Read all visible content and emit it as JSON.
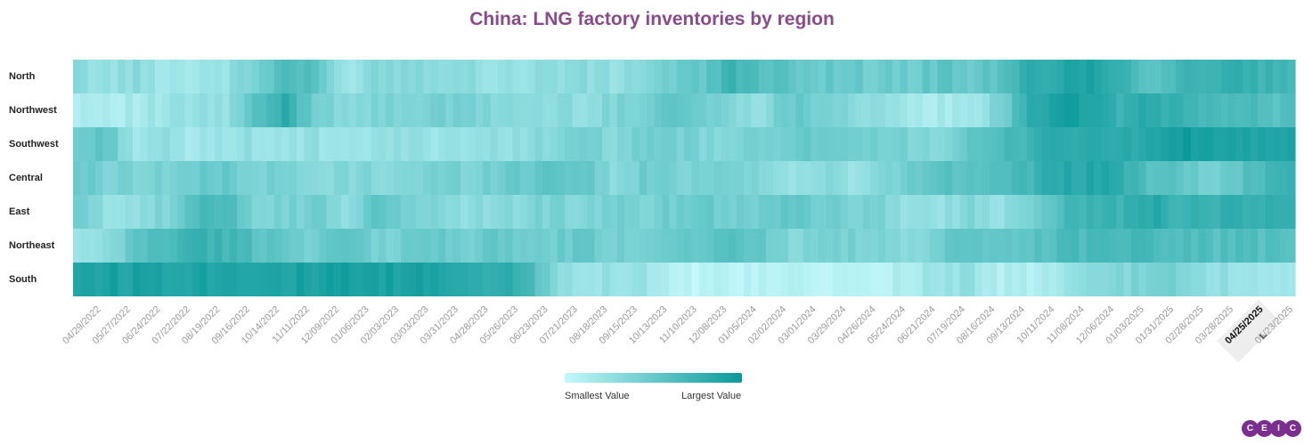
{
  "page_title": "China: LNG factory inventories by region",
  "colors": {
    "title": "#8b4a8c",
    "min": "#c4f8fb",
    "max": "#0a9999",
    "logo": "#7a2e8e"
  },
  "legend": {
    "min_label": "Smallest Value",
    "max_label": "Largest Value"
  },
  "logo_text": [
    "C",
    "E",
    "I",
    "C"
  ],
  "chart_data": {
    "type": "heatmap",
    "title": "China: LNG factory inventories by region",
    "rows": [
      "North",
      "Northwest",
      "Southwest",
      "Central",
      "East",
      "Northeast",
      "South"
    ],
    "x_tick_labels": [
      "04/29/2022",
      "05/27/2022",
      "06/24/2022",
      "07/22/2022",
      "08/19/2022",
      "09/16/2022",
      "10/14/2022",
      "11/11/2022",
      "12/09/2022",
      "01/06/2023",
      "02/03/2023",
      "03/03/2023",
      "03/31/2023",
      "04/28/2023",
      "05/26/2023",
      "06/23/2023",
      "07/21/2023",
      "08/18/2023",
      "09/15/2023",
      "10/13/2023",
      "11/10/2023",
      "12/08/2023",
      "01/05/2024",
      "02/02/2024",
      "03/01/2024",
      "03/29/2024",
      "04/26/2024",
      "05/24/2024",
      "06/21/2024",
      "07/19/2024",
      "08/16/2024",
      "09/13/2024",
      "10/11/2024",
      "11/08/2024",
      "12/06/2024",
      "01/03/2025",
      "01/31/2025",
      "02/28/2025",
      "03/28/2025",
      "04/25/2025",
      "05/23/2025"
    ],
    "highlighted_tick": "04/25/2025",
    "scale": "relative (smallest to largest value)",
    "values_by_row_per_tick": {
      "North": [
        0.3,
        0.25,
        0.3,
        0.2,
        0.2,
        0.25,
        0.4,
        0.65,
        0.55,
        0.2,
        0.35,
        0.35,
        0.35,
        0.3,
        0.25,
        0.25,
        0.3,
        0.3,
        0.25,
        0.35,
        0.45,
        0.5,
        0.75,
        0.55,
        0.55,
        0.5,
        0.5,
        0.45,
        0.45,
        0.55,
        0.5,
        0.55,
        0.8,
        0.85,
        0.9,
        0.8,
        0.55,
        0.7,
        0.75,
        0.75,
        0.7
      ],
      "Northwest": [
        0.15,
        0.15,
        0.15,
        0.2,
        0.25,
        0.25,
        0.55,
        0.8,
        0.45,
        0.35,
        0.35,
        0.4,
        0.4,
        0.4,
        0.35,
        0.3,
        0.3,
        0.3,
        0.35,
        0.45,
        0.55,
        0.45,
        0.35,
        0.3,
        0.5,
        0.45,
        0.35,
        0.25,
        0.15,
        0.15,
        0.15,
        0.4,
        0.85,
        0.9,
        0.9,
        0.75,
        0.8,
        0.75,
        0.65,
        0.65,
        0.6
      ],
      "Southwest": [
        0.45,
        0.55,
        0.2,
        0.25,
        0.15,
        0.25,
        0.25,
        0.2,
        0.25,
        0.15,
        0.25,
        0.25,
        0.25,
        0.25,
        0.25,
        0.3,
        0.35,
        0.4,
        0.35,
        0.4,
        0.45,
        0.35,
        0.35,
        0.4,
        0.5,
        0.45,
        0.4,
        0.4,
        0.4,
        0.35,
        0.5,
        0.6,
        0.75,
        0.85,
        0.8,
        0.8,
        0.85,
        0.95,
        0.9,
        0.9,
        0.85
      ],
      "Central": [
        0.5,
        0.4,
        0.4,
        0.4,
        0.45,
        0.5,
        0.4,
        0.4,
        0.3,
        0.35,
        0.35,
        0.35,
        0.4,
        0.4,
        0.45,
        0.5,
        0.55,
        0.55,
        0.3,
        0.45,
        0.4,
        0.4,
        0.45,
        0.35,
        0.2,
        0.35,
        0.2,
        0.35,
        0.45,
        0.6,
        0.55,
        0.65,
        0.7,
        0.8,
        0.85,
        0.8,
        0.6,
        0.55,
        0.4,
        0.55,
        0.7
      ],
      "East": [
        0.45,
        0.25,
        0.3,
        0.35,
        0.6,
        0.7,
        0.4,
        0.4,
        0.45,
        0.3,
        0.5,
        0.45,
        0.35,
        0.3,
        0.3,
        0.35,
        0.4,
        0.35,
        0.4,
        0.4,
        0.45,
        0.5,
        0.45,
        0.45,
        0.55,
        0.45,
        0.4,
        0.4,
        0.25,
        0.25,
        0.35,
        0.25,
        0.45,
        0.65,
        0.7,
        0.75,
        0.85,
        0.75,
        0.75,
        0.75,
        0.8
      ],
      "Northeast": [
        0.2,
        0.25,
        0.55,
        0.65,
        0.75,
        0.7,
        0.6,
        0.5,
        0.45,
        0.55,
        0.4,
        0.45,
        0.5,
        0.45,
        0.5,
        0.45,
        0.45,
        0.5,
        0.4,
        0.45,
        0.5,
        0.55,
        0.6,
        0.5,
        0.35,
        0.45,
        0.4,
        0.35,
        0.3,
        0.45,
        0.55,
        0.5,
        0.55,
        0.65,
        0.65,
        0.7,
        0.65,
        0.65,
        0.6,
        0.6,
        0.6
      ],
      "South": [
        0.9,
        0.9,
        0.9,
        0.9,
        0.9,
        0.9,
        0.9,
        0.9,
        0.9,
        0.9,
        0.9,
        0.9,
        0.9,
        0.85,
        0.8,
        0.75,
        0.35,
        0.25,
        0.25,
        0.25,
        0.05,
        0.05,
        0.05,
        0.05,
        0.05,
        0.05,
        0.05,
        0.05,
        0.15,
        0.25,
        0.25,
        0.1,
        0.1,
        0.15,
        0.3,
        0.35,
        0.4,
        0.4,
        0.3,
        0.25,
        0.15
      ]
    }
  }
}
